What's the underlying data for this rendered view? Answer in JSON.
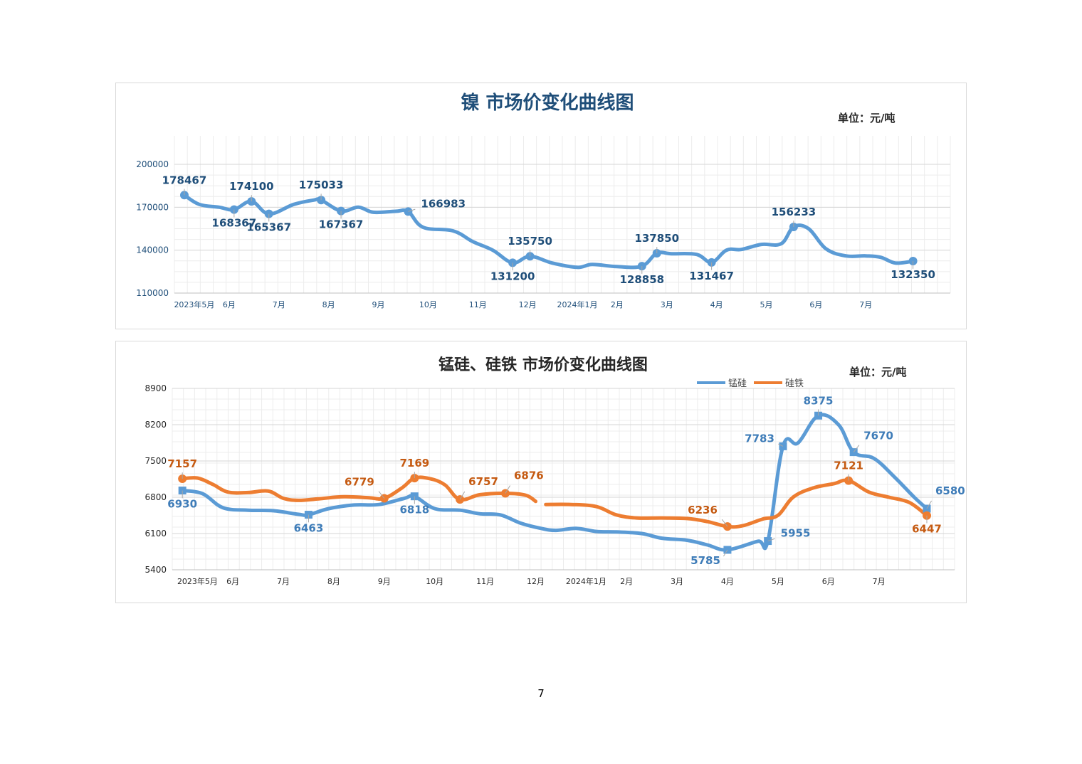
{
  "page_number": "7",
  "chart_data": [
    {
      "type": "line",
      "title": "镍 市场价变化曲线图",
      "unit": "单位：元/吨",
      "ylim": [
        110000,
        200000
      ],
      "yticks": [
        110000,
        140000,
        170000,
        200000
      ],
      "xlim": [
        -0.4,
        15.2
      ],
      "xticks": [
        {
          "x": 0.0,
          "label": "2023年5月"
        },
        {
          "x": 0.7,
          "label": "6月"
        },
        {
          "x": 1.7,
          "label": "7月"
        },
        {
          "x": 2.7,
          "label": "8月"
        },
        {
          "x": 3.7,
          "label": "9月"
        },
        {
          "x": 4.7,
          "label": "10月"
        },
        {
          "x": 5.7,
          "label": "11月"
        },
        {
          "x": 6.7,
          "label": "12月"
        },
        {
          "x": 7.7,
          "label": "2024年1月"
        },
        {
          "x": 8.5,
          "label": "2月"
        },
        {
          "x": 9.5,
          "label": "3月"
        },
        {
          "x": 10.5,
          "label": "4月"
        },
        {
          "x": 11.5,
          "label": "5月"
        },
        {
          "x": 12.5,
          "label": "6月"
        },
        {
          "x": 13.5,
          "label": "7月"
        }
      ],
      "series": [
        {
          "color": "#5b9bd5",
          "points": [
            [
              -0.2,
              178467
            ],
            [
              0.1,
              172000
            ],
            [
              0.5,
              170000
            ],
            [
              0.8,
              168367
            ],
            [
              1.15,
              174100
            ],
            [
              1.5,
              165367
            ],
            [
              2.0,
              172000
            ],
            [
              2.4,
              175000
            ],
            [
              2.55,
              175033
            ],
            [
              2.95,
              167367
            ],
            [
              3.3,
              170000
            ],
            [
              3.6,
              166500
            ],
            [
              4.05,
              167200
            ],
            [
              4.3,
              166983
            ],
            [
              4.6,
              156000
            ],
            [
              5.2,
              153500
            ],
            [
              5.6,
              146000
            ],
            [
              6.0,
              140000
            ],
            [
              6.4,
              131200
            ],
            [
              6.75,
              135750
            ],
            [
              7.2,
              131000
            ],
            [
              7.7,
              128000
            ],
            [
              8.0,
              130000
            ],
            [
              8.5,
              128500
            ],
            [
              9.0,
              128858
            ],
            [
              9.3,
              137850
            ],
            [
              9.6,
              137500
            ],
            [
              10.1,
              137000
            ],
            [
              10.4,
              131467
            ],
            [
              10.7,
              140000
            ],
            [
              11.0,
              140500
            ],
            [
              11.4,
              144000
            ],
            [
              11.8,
              144500
            ],
            [
              12.05,
              156233
            ],
            [
              12.35,
              155000
            ],
            [
              12.7,
              141000
            ],
            [
              13.1,
              136000
            ],
            [
              13.5,
              136000
            ],
            [
              13.8,
              135000
            ],
            [
              14.1,
              131000
            ],
            [
              14.45,
              132350
            ]
          ],
          "markers": [
            {
              "x": -0.2,
              "y": 178467,
              "label": "178467",
              "pos": "above"
            },
            {
              "x": 0.8,
              "y": 168367,
              "label": "168367",
              "pos": "below"
            },
            {
              "x": 1.15,
              "y": 174100,
              "label": "174100",
              "pos": "above"
            },
            {
              "x": 1.5,
              "y": 165367,
              "label": "165367",
              "pos": "below"
            },
            {
              "x": 2.55,
              "y": 175033,
              "label": "175033",
              "pos": "above"
            },
            {
              "x": 2.95,
              "y": 167367,
              "label": "167367",
              "pos": "below"
            },
            {
              "x": 4.3,
              "y": 166983,
              "label": "166983",
              "pos": "right"
            },
            {
              "x": 6.4,
              "y": 131200,
              "label": "131200",
              "pos": "below"
            },
            {
              "x": 6.75,
              "y": 135750,
              "label": "135750",
              "pos": "above"
            },
            {
              "x": 9.0,
              "y": 128858,
              "label": "128858",
              "pos": "below"
            },
            {
              "x": 9.3,
              "y": 137850,
              "label": "137850",
              "pos": "above"
            },
            {
              "x": 10.4,
              "y": 131467,
              "label": "131467",
              "pos": "below"
            },
            {
              "x": 12.05,
              "y": 156233,
              "label": "156233",
              "pos": "above"
            },
            {
              "x": 14.45,
              "y": 132350,
              "label": "132350",
              "pos": "below"
            }
          ]
        }
      ]
    },
    {
      "type": "line",
      "title": "锰硅、硅铁 市场价变化曲线图",
      "unit": "单位：元/吨",
      "ylim": [
        5400,
        8900
      ],
      "yticks": [
        5400,
        6100,
        6800,
        7500,
        8200,
        8900
      ],
      "xlim": [
        -0.5,
        15.0
      ],
      "legend_position": "top-right",
      "xticks": [
        {
          "x": 0.0,
          "label": "2023年5月"
        },
        {
          "x": 0.7,
          "label": "6月"
        },
        {
          "x": 1.7,
          "label": "7月"
        },
        {
          "x": 2.7,
          "label": "8月"
        },
        {
          "x": 3.7,
          "label": "9月"
        },
        {
          "x": 4.7,
          "label": "10月"
        },
        {
          "x": 5.7,
          "label": "11月"
        },
        {
          "x": 6.7,
          "label": "12月"
        },
        {
          "x": 7.7,
          "label": "2024年1月"
        },
        {
          "x": 8.5,
          "label": "2月"
        },
        {
          "x": 9.5,
          "label": "3月"
        },
        {
          "x": 10.5,
          "label": "4月"
        },
        {
          "x": 11.5,
          "label": "5月"
        },
        {
          "x": 12.5,
          "label": "6月"
        },
        {
          "x": 13.5,
          "label": "7月"
        }
      ],
      "series": [
        {
          "name": "锰硅",
          "color": "#5b9bd5",
          "segments": [
            [
              [
                -0.3,
                6930
              ],
              [
                0.1,
                6870
              ],
              [
                0.5,
                6600
              ],
              [
                1.0,
                6550
              ],
              [
                1.5,
                6540
              ],
              [
                2.0,
                6470
              ],
              [
                2.2,
                6463
              ],
              [
                2.6,
                6580
              ],
              [
                3.1,
                6650
              ],
              [
                3.6,
                6660
              ],
              [
                4.1,
                6780
              ],
              [
                4.3,
                6818
              ],
              [
                4.7,
                6580
              ],
              [
                5.2,
                6550
              ],
              [
                5.6,
                6480
              ],
              [
                6.0,
                6460
              ],
              [
                6.4,
                6300
              ],
              [
                6.8,
                6200
              ],
              [
                7.1,
                6160
              ],
              [
                7.5,
                6200
              ],
              [
                7.9,
                6140
              ],
              [
                8.3,
                6130
              ],
              [
                8.8,
                6100
              ],
              [
                9.2,
                6010
              ],
              [
                9.7,
                5970
              ],
              [
                10.1,
                5880
              ],
              [
                10.5,
                5785
              ],
              [
                11.1,
                5950
              ],
              [
                11.3,
                5955
              ],
              [
                11.6,
                7783
              ],
              [
                11.9,
                7850
              ],
              [
                12.3,
                8375
              ],
              [
                12.7,
                8200
              ],
              [
                13.0,
                7670
              ],
              [
                13.4,
                7550
              ],
              [
                13.8,
                7200
              ],
              [
                14.2,
                6800
              ],
              [
                14.45,
                6580
              ]
            ]
          ],
          "markers": [
            {
              "x": -0.3,
              "y": 6930,
              "label": "6930",
              "pos": "below"
            },
            {
              "x": 2.2,
              "y": 6463,
              "label": "6463",
              "pos": "below"
            },
            {
              "x": 4.3,
              "y": 6818,
              "label": "6818",
              "pos": "below"
            },
            {
              "x": 10.5,
              "y": 5785,
              "label": "5785",
              "pos": "below-left"
            },
            {
              "x": 11.3,
              "y": 5955,
              "label": "5955",
              "pos": "right"
            },
            {
              "x": 11.6,
              "y": 7783,
              "label": "7783",
              "pos": "left"
            },
            {
              "x": 12.3,
              "y": 8375,
              "label": "8375",
              "pos": "above"
            },
            {
              "x": 13.0,
              "y": 7670,
              "label": "7670",
              "pos": "right-up"
            },
            {
              "x": 14.45,
              "y": 6580,
              "label": "6580",
              "pos": "above-right"
            }
          ]
        },
        {
          "name": "硅铁",
          "color": "#ed7d31",
          "segments": [
            [
              [
                -0.3,
                7157
              ],
              [
                0.0,
                7170
              ],
              [
                0.3,
                7050
              ],
              [
                0.6,
                6900
              ],
              [
                1.0,
                6890
              ],
              [
                1.4,
                6920
              ],
              [
                1.7,
                6780
              ],
              [
                2.0,
                6740
              ],
              [
                2.4,
                6770
              ],
              [
                2.9,
                6810
              ],
              [
                3.4,
                6790
              ],
              [
                3.7,
                6779
              ],
              [
                4.05,
                6980
              ],
              [
                4.3,
                7169
              ],
              [
                4.6,
                7160
              ],
              [
                4.9,
                7040
              ],
              [
                5.2,
                6757
              ],
              [
                5.6,
                6850
              ],
              [
                6.1,
                6876
              ],
              [
                6.5,
                6840
              ],
              [
                6.7,
                6720
              ]
            ],
            [
              [
                6.9,
                6660
              ],
              [
                7.4,
                6660
              ],
              [
                7.9,
                6620
              ],
              [
                8.3,
                6460
              ],
              [
                8.7,
                6400
              ],
              [
                9.2,
                6400
              ],
              [
                9.7,
                6390
              ],
              [
                10.1,
                6330
              ],
              [
                10.5,
                6236
              ],
              [
                10.8,
                6250
              ],
              [
                11.2,
                6380
              ],
              [
                11.5,
                6450
              ],
              [
                11.8,
                6800
              ],
              [
                12.2,
                6980
              ],
              [
                12.6,
                7060
              ],
              [
                12.9,
                7121
              ],
              [
                13.3,
                6900
              ],
              [
                13.7,
                6800
              ],
              [
                14.1,
                6700
              ],
              [
                14.45,
                6447
              ]
            ]
          ],
          "markers": [
            {
              "x": -0.3,
              "y": 7157,
              "label": "7157",
              "pos": "above"
            },
            {
              "x": 3.7,
              "y": 6779,
              "label": "6779",
              "pos": "above-left"
            },
            {
              "x": 4.3,
              "y": 7169,
              "label": "7169",
              "pos": "above"
            },
            {
              "x": 5.2,
              "y": 6757,
              "label": "6757",
              "pos": "above-right"
            },
            {
              "x": 6.1,
              "y": 6876,
              "label": "6876",
              "pos": "above-right"
            },
            {
              "x": 10.5,
              "y": 6236,
              "label": "6236",
              "pos": "above-left"
            },
            {
              "x": 12.9,
              "y": 7121,
              "label": "7121",
              "pos": "above"
            },
            {
              "x": 14.45,
              "y": 6447,
              "label": "6447",
              "pos": "below"
            }
          ]
        }
      ]
    }
  ]
}
